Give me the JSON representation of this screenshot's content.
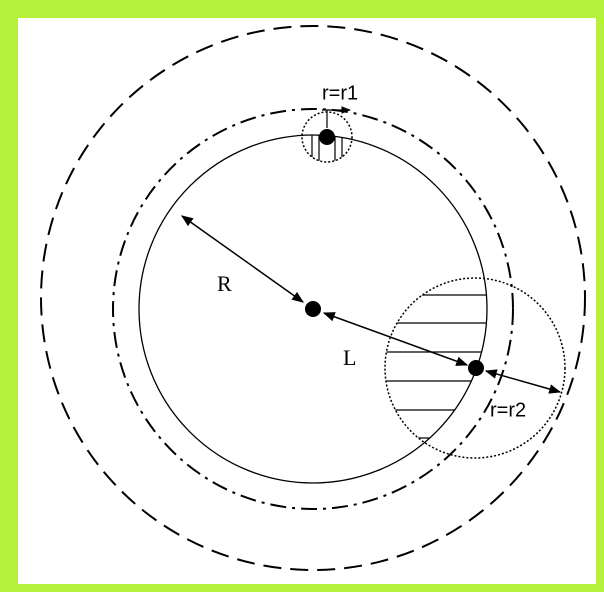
{
  "labels": {
    "small_radius": "r=r1",
    "main_radius": "R",
    "distance": "L",
    "large_radius": "r=r2"
  }
}
